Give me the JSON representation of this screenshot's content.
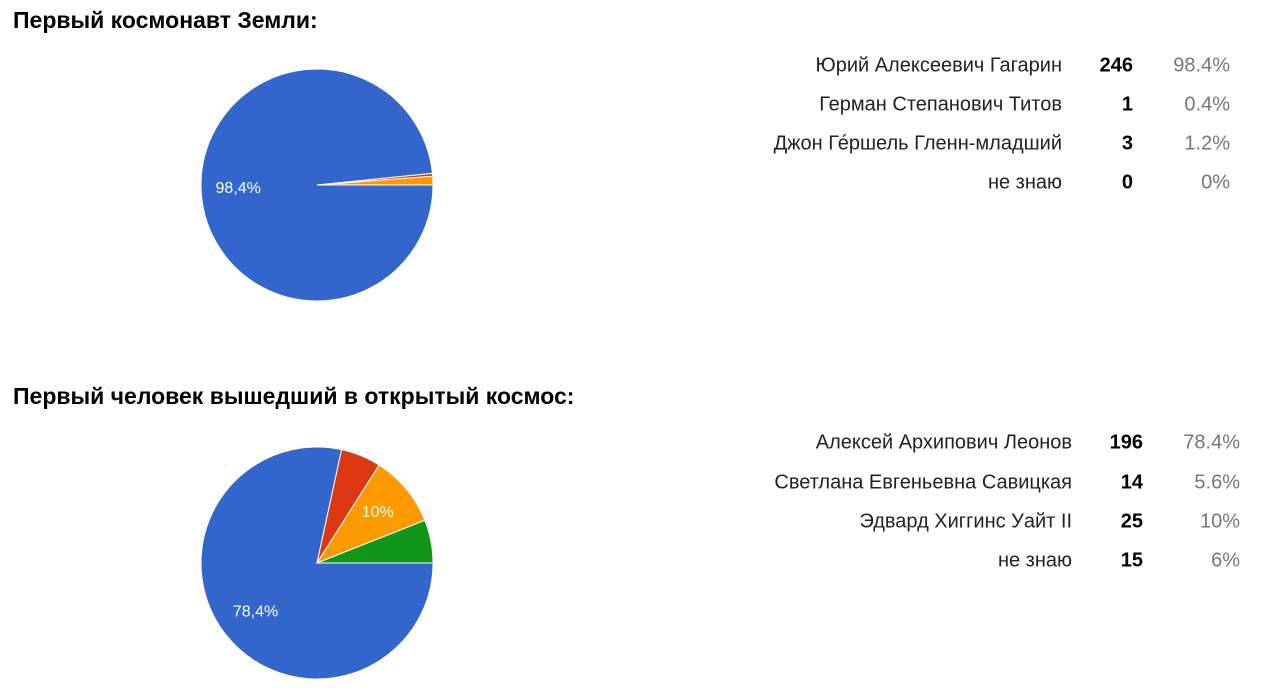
{
  "chart_data": [
    {
      "type": "pie",
      "title": "Первый космонавт Земли:",
      "categories": [
        "Юрий Алексеевич Гагарин",
        "Герман Степанович Титов",
        "Джон Ге́ршель Гленн-младший",
        "не знаю"
      ],
      "counts": [
        246,
        1,
        3,
        0
      ],
      "values": [
        98.4,
        0.4,
        1.2,
        0
      ],
      "value_labels": [
        "98.4%",
        "0.4%",
        "1.2%",
        "0%"
      ],
      "slice_labels": [
        "98,4%",
        null,
        null,
        null
      ],
      "colors": [
        "#3366cc",
        "#dc3912",
        "#ff9900",
        "#109618"
      ]
    },
    {
      "type": "pie",
      "title": "Первый человек вышедший в открытый космос:",
      "categories": [
        "Алексей Архипович Леонов",
        "Светлана Евгеньевна Савицкая",
        "Эдвард Хиггинс Уайт II",
        "не знаю"
      ],
      "counts": [
        196,
        14,
        25,
        15
      ],
      "values": [
        78.4,
        5.6,
        10,
        6
      ],
      "value_labels": [
        "78.4%",
        "5.6%",
        "10%",
        "6%"
      ],
      "slice_labels": [
        "78,4%",
        null,
        "10%",
        null
      ],
      "colors": [
        "#3366cc",
        "#dc3912",
        "#ff9900",
        "#109618"
      ]
    }
  ]
}
